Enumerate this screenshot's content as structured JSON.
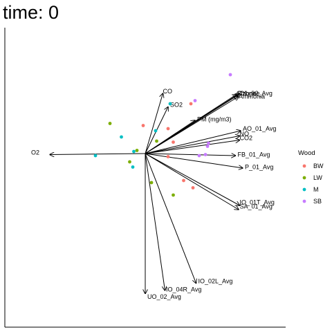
{
  "chart_data": {
    "type": "scatter",
    "title": "time: 0",
    "xlim": [
      -1.5,
      1.5
    ],
    "ylim": [
      -1.5,
      1.5
    ],
    "grid": false,
    "legend_position": "right",
    "legend": {
      "title": "Wood",
      "entries": [
        {
          "label": "BW",
          "color": "#F8766D"
        },
        {
          "label": "LW",
          "color": "#7CAE00"
        },
        {
          "label": "M",
          "color": "#00BFC4"
        },
        {
          "label": "SB",
          "color": "#C77CFF"
        }
      ]
    },
    "vectors": [
      {
        "label": "CO",
        "x": 0.17,
        "y": 0.58,
        "lx": 0.17,
        "ly": 0.6
      },
      {
        "label": "SO2",
        "x": 0.22,
        "y": 0.45,
        "lx": 0.24,
        "ly": 0.47
      },
      {
        "label": "Chlorine",
        "x": 0.88,
        "y": 0.57,
        "lx": 0.88,
        "ly": 0.58
      },
      {
        "label": "Ozone",
        "x": 0.89,
        "y": 0.56,
        "lx": 0.89,
        "ly": 0.58
      },
      {
        "label": "O1_02_Avg",
        "x": 0.91,
        "y": 0.58,
        "lx": 0.91,
        "ly": 0.58
      },
      {
        "label": "Ammonia",
        "x": 0.9,
        "y": 0.55,
        "lx": 0.9,
        "ly": 0.55
      },
      {
        "label": "PM (mg/m3)",
        "x": 0.48,
        "y": 0.32,
        "lx": 0.5,
        "ly": 0.33
      },
      {
        "label": "AO_01_Avg",
        "x": 0.92,
        "y": 0.22,
        "lx": 0.94,
        "ly": 0.24
      },
      {
        "label": "NO",
        "x": 0.91,
        "y": 0.17,
        "lx": 0.91,
        "ly": 0.19
      },
      {
        "label": "CO2",
        "x": 0.91,
        "y": 0.13,
        "lx": 0.91,
        "ly": 0.15
      },
      {
        "label": "FB_01_Avg",
        "x": 0.87,
        "y": -0.02,
        "lx": 0.89,
        "ly": -0.01
      },
      {
        "label": "P_01_Avg",
        "x": 0.94,
        "y": -0.14,
        "lx": 0.96,
        "ly": -0.13
      },
      {
        "label": "IO_01T_Avg",
        "x": 0.91,
        "y": -0.5,
        "lx": 0.91,
        "ly": -0.47
      },
      {
        "label": "SA_01_Avg",
        "x": 0.9,
        "y": -0.54,
        "lx": 0.91,
        "ly": -0.51
      },
      {
        "label": "IO_02L_Avg",
        "x": 0.49,
        "y": -1.25,
        "lx": 0.51,
        "ly": -1.23
      },
      {
        "label": "IO_04R_Avg",
        "x": 0.19,
        "y": -1.32,
        "lx": 0.2,
        "ly": -1.31
      },
      {
        "label": "UO_02_Avg",
        "x": 0.0,
        "y": -1.35,
        "lx": 0.02,
        "ly": -1.38
      },
      {
        "label": "O2",
        "x": -0.92,
        "y": -0.01,
        "lx": -1.02,
        "ly": 0.01
      }
    ],
    "points": [
      {
        "group": "SB",
        "x": 0.82,
        "y": 0.76
      },
      {
        "group": "SB",
        "x": 0.48,
        "y": 0.51
      },
      {
        "group": "SB",
        "x": 0.61,
        "y": 0.1
      },
      {
        "group": "SB",
        "x": 0.6,
        "y": 0.07
      },
      {
        "group": "SB",
        "x": 0.52,
        "y": -0.02
      },
      {
        "group": "SB",
        "x": 0.58,
        "y": -0.01
      },
      {
        "group": "BW",
        "x": 0.44,
        "y": 0.48
      },
      {
        "group": "BW",
        "x": -0.02,
        "y": 0.27
      },
      {
        "group": "BW",
        "x": 0.22,
        "y": 0.24
      },
      {
        "group": "BW",
        "x": 0.22,
        "y": -0.03
      },
      {
        "group": "BW",
        "x": 0.37,
        "y": -0.26
      },
      {
        "group": "BW",
        "x": 0.46,
        "y": -0.33
      },
      {
        "group": "BW",
        "x": 0.27,
        "y": 0.11
      },
      {
        "group": "LW",
        "x": -0.34,
        "y": 0.29
      },
      {
        "group": "LW",
        "x": 0.11,
        "y": 0.12
      },
      {
        "group": "LW",
        "x": -0.08,
        "y": 0.03
      },
      {
        "group": "LW",
        "x": -0.15,
        "y": -0.08
      },
      {
        "group": "LW",
        "x": 0.06,
        "y": -0.28
      },
      {
        "group": "LW",
        "x": 0.27,
        "y": -0.4
      },
      {
        "group": "M",
        "x": 0.24,
        "y": 0.48
      },
      {
        "group": "M",
        "x": 0.1,
        "y": 0.22
      },
      {
        "group": "M",
        "x": -0.23,
        "y": 0.16
      },
      {
        "group": "M",
        "x": -0.11,
        "y": 0.02
      },
      {
        "group": "M",
        "x": -0.48,
        "y": -0.02
      },
      {
        "group": "M",
        "x": -0.12,
        "y": -0.13
      }
    ]
  }
}
